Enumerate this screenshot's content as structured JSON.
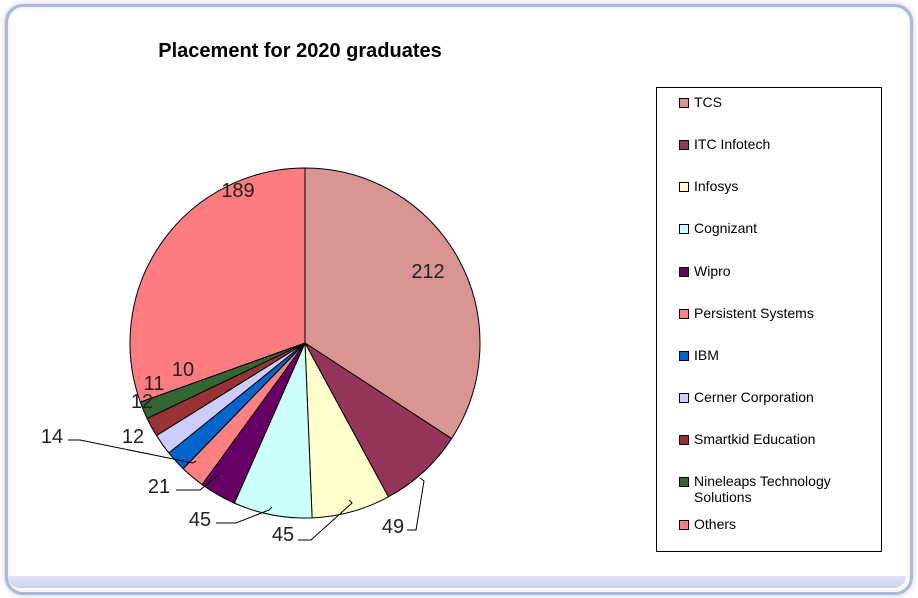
{
  "chart_data": {
    "type": "pie",
    "title": "Placement for 2020 graduates",
    "categories": [
      "TCS",
      "ITC Infotech",
      "Infosys",
      "Cognizant",
      "Wipro",
      "Persistent Systems",
      "IBM",
      "Cerner Corporation",
      "Smartkid Education",
      "Nineleaps Technology Solutions",
      "Others"
    ],
    "values": [
      212,
      49,
      45,
      45,
      21,
      14,
      12,
      12,
      11,
      10,
      189
    ],
    "colors": [
      "#d99594",
      "#953559",
      "#ffffcc",
      "#ccffff",
      "#660066",
      "#ff8080",
      "#0066cc",
      "#ccccff",
      "#993333",
      "#336633",
      "#ff7c80"
    ],
    "legend_position": "right",
    "data_labels": [
      "212",
      "49",
      "45",
      "45",
      "21",
      "14",
      "12",
      "12",
      "11",
      "10",
      "189"
    ]
  }
}
